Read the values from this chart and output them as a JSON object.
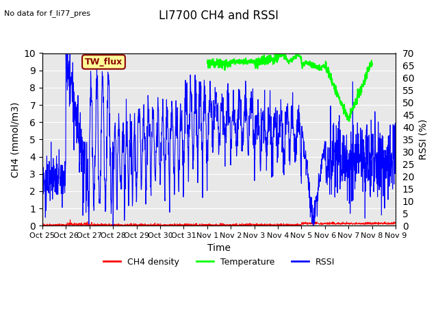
{
  "title": "LI7700 CH4 and RSSI",
  "top_left_text": "No data for f_li77_pres",
  "annotation_text": "TW_flux",
  "xlabel": "Time",
  "ylabel_left": "CH4 (mmol/m3)",
  "ylabel_right": "RSSI (%)",
  "ylim_left": [
    0.0,
    10.0
  ],
  "ylim_right": [
    0,
    70
  ],
  "yticks_left": [
    0.0,
    1.0,
    2.0,
    3.0,
    4.0,
    5.0,
    6.0,
    7.0,
    8.0,
    9.0,
    10.0
  ],
  "yticks_right": [
    0,
    5,
    10,
    15,
    20,
    25,
    30,
    35,
    40,
    45,
    50,
    55,
    60,
    65,
    70
  ],
  "xtick_labels": [
    "Oct 25",
    "Oct 26",
    "Oct 27",
    "Oct 28",
    "Oct 29",
    "Oct 30",
    "Oct 31",
    "Nov 1",
    "Nov 2",
    "Nov 3",
    "Nov 4",
    "Nov 5",
    "Nov 6",
    "Nov 7",
    "Nov 8",
    "Nov 9"
  ],
  "bg_color": "#e8e8e8",
  "ch4_color": "#ff0000",
  "temp_color": "#00ff00",
  "rssi_color": "#0000ff",
  "annotation_bg": "#ffff99",
  "annotation_border": "#8B0000",
  "legend_labels": [
    "CH4 density",
    "Temperature",
    "RSSI"
  ],
  "legend_colors": [
    "#ff0000",
    "#00ff00",
    "#0000ff"
  ]
}
